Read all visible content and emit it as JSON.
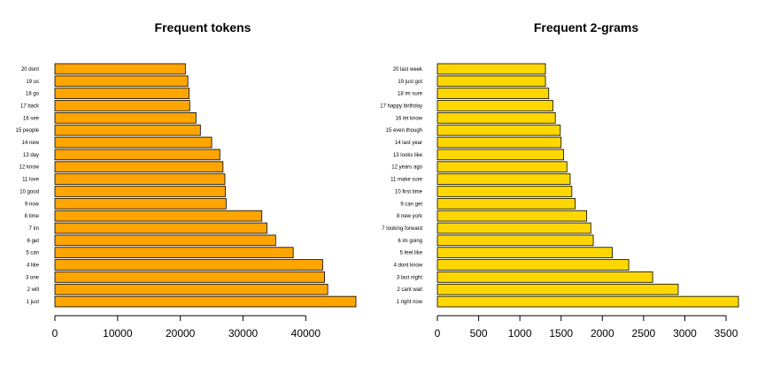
{
  "chart_data": [
    {
      "type": "bar",
      "orientation": "horizontal",
      "title": "Frequent tokens",
      "bar_color": "#FFA500",
      "xlim": [
        0,
        48000
      ],
      "xticks": [
        0,
        10000,
        20000,
        30000,
        40000
      ],
      "xtick_labels": [
        "0",
        "10000",
        "20000",
        "30000",
        "40000"
      ],
      "grid": false,
      "categories": [
        "1 just",
        "2 will",
        "3 one",
        "4 like",
        "5 can",
        "6 get",
        "7 im",
        "8 time",
        "9 now",
        "10 good",
        "11 love",
        "12 know",
        "13 day",
        "14 new",
        "15 people",
        "16 see",
        "17 back",
        "18 go",
        "19 us",
        "20 dont"
      ],
      "values": [
        48000,
        43500,
        43000,
        42700,
        38000,
        35200,
        33800,
        33000,
        27300,
        27200,
        27100,
        26800,
        26300,
        25000,
        23200,
        22500,
        21500,
        21400,
        21200,
        20800
      ]
    },
    {
      "type": "bar",
      "orientation": "horizontal",
      "title": "Frequent 2-grams",
      "bar_color": "#FFD700",
      "xlim": [
        0,
        3650
      ],
      "xticks": [
        0,
        500,
        1000,
        1500,
        2000,
        2500,
        3000,
        3500
      ],
      "xtick_labels": [
        "0",
        "500",
        "1000",
        "1500",
        "2000",
        "2500",
        "3000",
        "3500"
      ],
      "grid": false,
      "categories": [
        "1 right now",
        "2 cant wait",
        "3 last night",
        "4 dont know",
        "5 feel like",
        "6 im going",
        "7 looking forward",
        "8 new york",
        "9 can get",
        "10 first time",
        "11 make sure",
        "12 years ago",
        "13 looks like",
        "14 last year",
        "15 even though",
        "16 let know",
        "17 happy birthday",
        "18 im sure",
        "19 just got",
        "20 last week"
      ],
      "values": [
        3650,
        2920,
        2610,
        2320,
        2120,
        1890,
        1860,
        1810,
        1670,
        1630,
        1610,
        1570,
        1530,
        1500,
        1490,
        1430,
        1400,
        1350,
        1310,
        1310
      ]
    }
  ]
}
